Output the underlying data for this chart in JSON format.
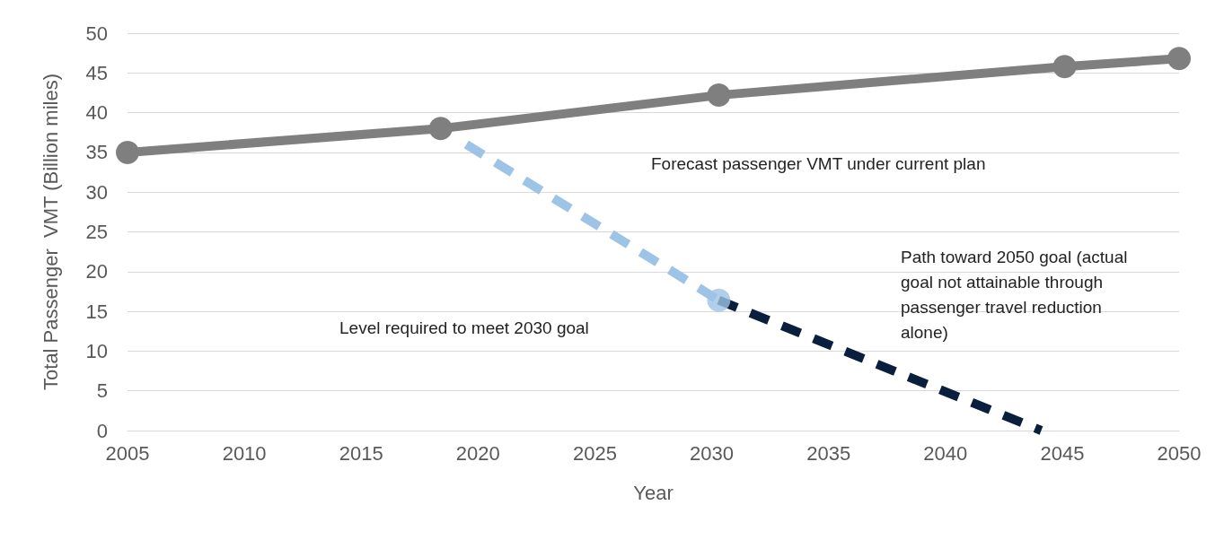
{
  "chart_data": {
    "type": "line",
    "xlabel": "Year",
    "ylabel": "Total Passenger  VMT (Billion miles)",
    "xlim": [
      2005,
      2050
    ],
    "xticks": [
      2005,
      2010,
      2015,
      2020,
      2025,
      2030,
      2035,
      2040,
      2045,
      2050
    ],
    "ylim": [
      0,
      50
    ],
    "yticks": [
      0,
      5,
      10,
      15,
      20,
      25,
      30,
      35,
      40,
      45,
      50
    ],
    "grid": "y",
    "series": [
      {
        "color": "#7f7f7f",
        "x": [
          2005,
          2018.4,
          2030.3,
          2045.1,
          2050
        ],
        "values": [
          35,
          38,
          42.2,
          45.8,
          46.8
        ],
        "marker": "circle",
        "line_style": "solid"
      },
      {
        "color": "#9dc3e6",
        "x": [
          2019.5,
          2030.3
        ],
        "values": [
          36,
          16.4
        ],
        "marker": "none",
        "line_style": "dashed"
      },
      {
        "color": "#0a1f3d",
        "x": [
          2030.3,
          2044.1
        ],
        "values": [
          16.4,
          0
        ],
        "marker": "none",
        "line_style": "dashed"
      },
      {
        "type": "scatter",
        "color": "#9dc3e6",
        "x": [
          2030.3
        ],
        "values": [
          16.4
        ],
        "marker": "circle"
      }
    ],
    "annotations": [
      "Forecast passenger VMT under current plan",
      "Level required to meet 2030 goal",
      "Path toward 2050 goal (actual goal not attainable through passenger travel reduction alone)"
    ]
  }
}
